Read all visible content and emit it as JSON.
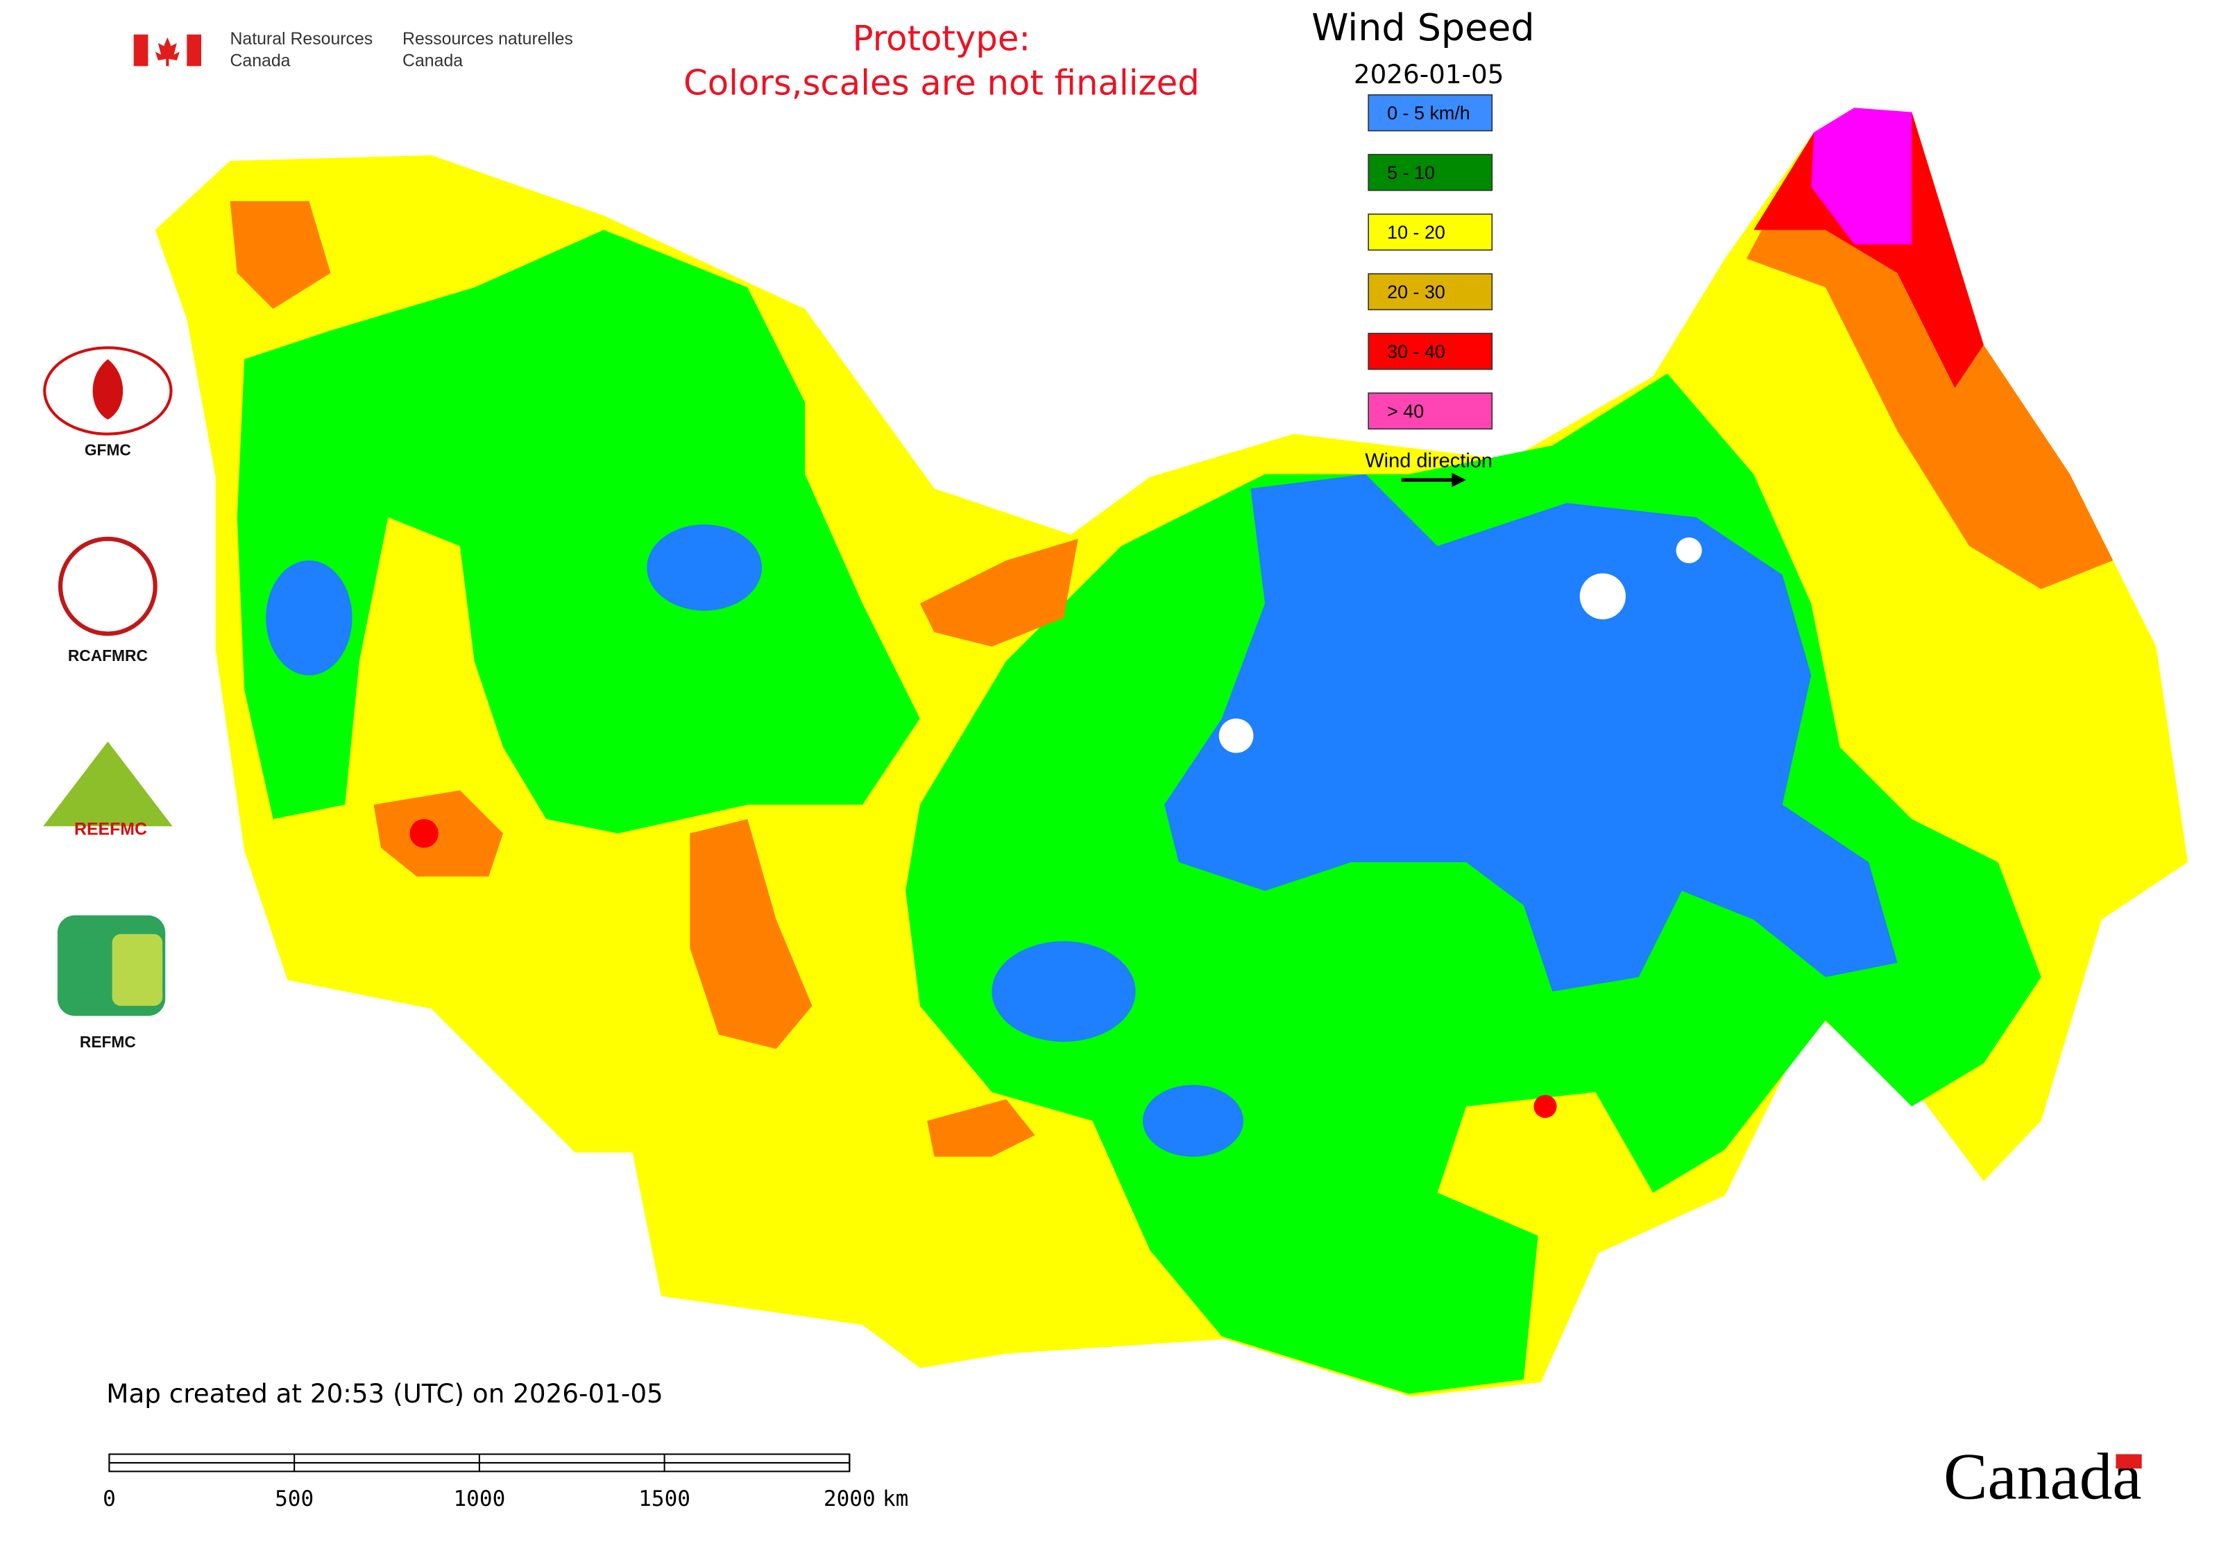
{
  "header": {
    "agency_en": [
      "Natural Resources",
      "Canada"
    ],
    "agency_fr": [
      "Ressources naturelles",
      "Canada"
    ],
    "notice": [
      "Prototype:",
      "Colors,scales are not finalized"
    ]
  },
  "legend": {
    "title": "Wind Speed",
    "date": "2026-01-05",
    "items": [
      {
        "label": "0 - 5 km/h",
        "color": "#3a8cff"
      },
      {
        "label": "5 - 10",
        "color": "#008a00"
      },
      {
        "label": "10 - 20",
        "color": "#ffff00"
      },
      {
        "label": "20 - 30",
        "color": "#ddb100"
      },
      {
        "label": "30 - 40",
        "color": "#ff0000"
      },
      {
        "label": "> 40",
        "color": "#ff44b4"
      }
    ],
    "direction_label": "Wind direction"
  },
  "logos": [
    {
      "label": "GFMC"
    },
    {
      "label": "RCAFMRC"
    },
    {
      "label": "REEFMC"
    },
    {
      "label": "REFMC"
    }
  ],
  "footer": {
    "created": "Map created at 20:53 (UTC) on 2026-01-05",
    "scale_bar": {
      "ticks": [
        0,
        500,
        1000,
        1500,
        2000
      ],
      "unit": "km"
    },
    "wordmark": "Canada"
  }
}
